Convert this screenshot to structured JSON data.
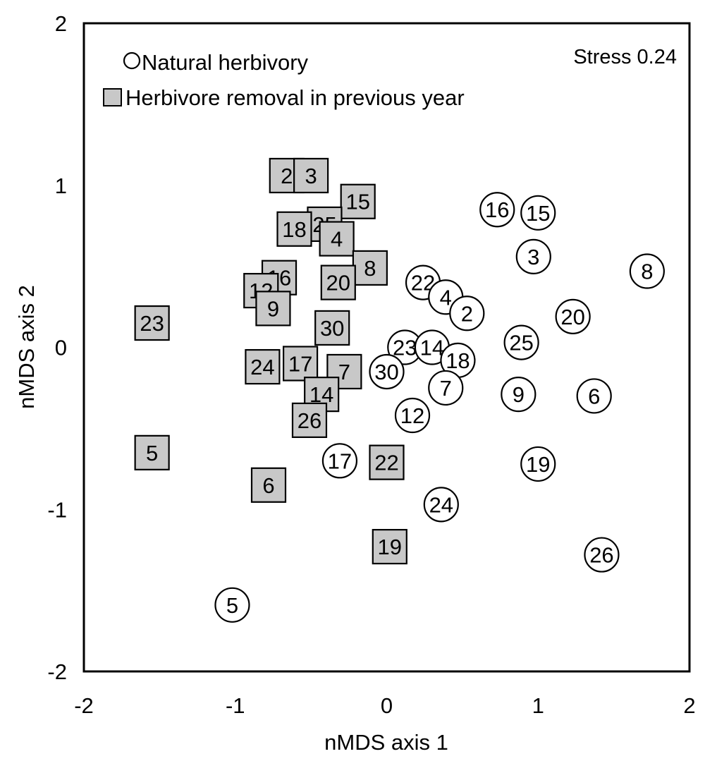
{
  "chart_data": {
    "type": "scatter",
    "xlabel": "nMDS axis 1",
    "ylabel": "nMDS axis 2",
    "xlim": [
      -2,
      2
    ],
    "ylim": [
      -2,
      2
    ],
    "x_ticks": [
      "-2",
      "-1",
      "0",
      "1",
      "2"
    ],
    "y_ticks": [
      "2",
      "1",
      "0",
      "-1",
      "-2"
    ],
    "annotation": "Stress 0.24",
    "grid": false,
    "legend_position": "top-left",
    "series": [
      {
        "name": "Natural herbivory",
        "marker": "circle",
        "fill": "#ffffff",
        "points": [
          {
            "label": "16",
            "x": 0.73,
            "y": 0.85
          },
          {
            "label": "15",
            "x": 1.0,
            "y": 0.83
          },
          {
            "label": "3",
            "x": 0.97,
            "y": 0.56
          },
          {
            "label": "8",
            "x": 1.72,
            "y": 0.47
          },
          {
            "label": "22",
            "x": 0.24,
            "y": 0.4
          },
          {
            "label": "4",
            "x": 0.39,
            "y": 0.31
          },
          {
            "label": "2",
            "x": 0.53,
            "y": 0.21
          },
          {
            "label": "20",
            "x": 1.23,
            "y": 0.19
          },
          {
            "label": "25",
            "x": 0.89,
            "y": 0.03
          },
          {
            "label": "23",
            "x": 0.12,
            "y": -0.0
          },
          {
            "label": "14",
            "x": 0.3,
            "y": -0.0
          },
          {
            "label": "18",
            "x": 0.47,
            "y": -0.08
          },
          {
            "label": "30",
            "x": 0.0,
            "y": -0.15
          },
          {
            "label": "7",
            "x": 0.39,
            "y": -0.25
          },
          {
            "label": "9",
            "x": 0.87,
            "y": -0.29
          },
          {
            "label": "6",
            "x": 1.37,
            "y": -0.3
          },
          {
            "label": "12",
            "x": 0.17,
            "y": -0.42
          },
          {
            "label": "17",
            "x": -0.31,
            "y": -0.7
          },
          {
            "label": "19",
            "x": 1.0,
            "y": -0.72
          },
          {
            "label": "24",
            "x": 0.36,
            "y": -0.97
          },
          {
            "label": "26",
            "x": 1.42,
            "y": -1.28
          },
          {
            "label": "5",
            "x": -1.02,
            "y": -1.59
          }
        ]
      },
      {
        "name": "Herbivore removal in previous year",
        "marker": "square",
        "fill": "#c8c8c8",
        "points": [
          {
            "label": "2",
            "x": -0.66,
            "y": 1.06
          },
          {
            "label": "3",
            "x": -0.5,
            "y": 1.06
          },
          {
            "label": "15",
            "x": -0.19,
            "y": 0.9
          },
          {
            "label": "25",
            "x": -0.41,
            "y": 0.76
          },
          {
            "label": "4",
            "x": -0.33,
            "y": 0.67
          },
          {
            "label": "18",
            "x": -0.61,
            "y": 0.73
          },
          {
            "label": "8",
            "x": -0.11,
            "y": 0.49
          },
          {
            "label": "20",
            "x": -0.32,
            "y": 0.4
          },
          {
            "label": "16",
            "x": -0.71,
            "y": 0.43
          },
          {
            "label": "12",
            "x": -0.83,
            "y": 0.35
          },
          {
            "label": "9",
            "x": -0.75,
            "y": 0.24
          },
          {
            "label": "23",
            "x": -1.55,
            "y": 0.15
          },
          {
            "label": "30",
            "x": -0.36,
            "y": 0.12
          },
          {
            "label": "24",
            "x": -0.82,
            "y": -0.12
          },
          {
            "label": "17",
            "x": -0.57,
            "y": -0.1
          },
          {
            "label": "7",
            "x": -0.28,
            "y": -0.15
          },
          {
            "label": "14",
            "x": -0.43,
            "y": -0.29
          },
          {
            "label": "26",
            "x": -0.51,
            "y": -0.45
          },
          {
            "label": "5",
            "x": -1.55,
            "y": -0.65
          },
          {
            "label": "22",
            "x": 0.0,
            "y": -0.71
          },
          {
            "label": "6",
            "x": -0.78,
            "y": -0.85
          },
          {
            "label": "19",
            "x": 0.02,
            "y": -1.23
          }
        ]
      }
    ]
  }
}
